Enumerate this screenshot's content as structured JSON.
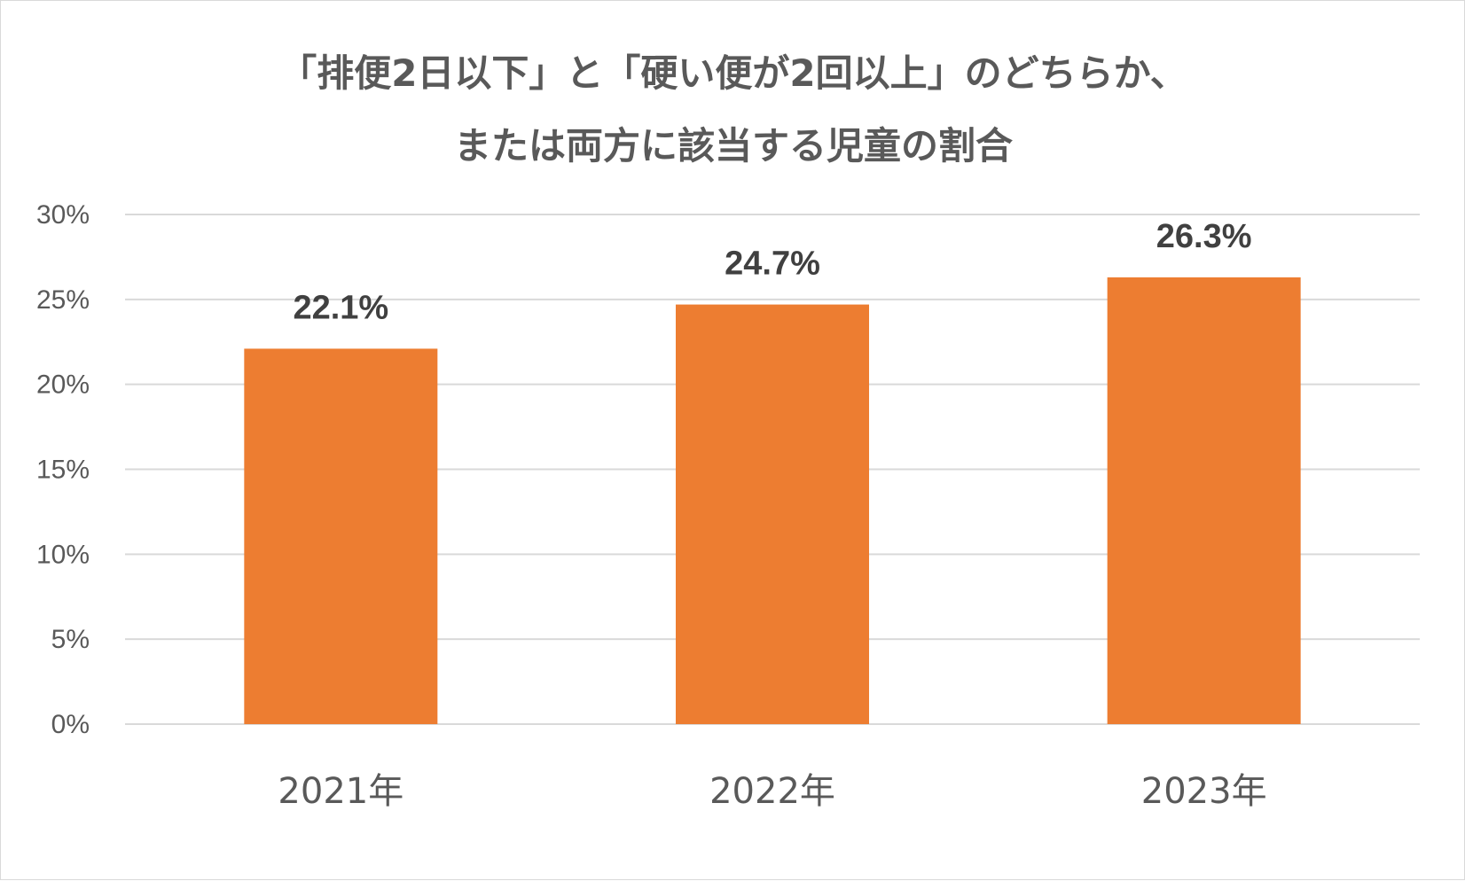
{
  "chart_data": {
    "type": "bar",
    "title_lines": [
      "「排便2日以下」と「硬い便が2回以上」のどちらか、",
      "または両方に該当する児童の割合"
    ],
    "categories": [
      "2021年",
      "2022年",
      "2023年"
    ],
    "values": [
      22.1,
      24.7,
      26.3
    ],
    "data_labels": [
      "22.1%",
      "24.7%",
      "26.3%"
    ],
    "ylim": [
      0,
      30
    ],
    "y_ticks": [
      0,
      5,
      10,
      15,
      20,
      25,
      30
    ],
    "y_tick_labels": [
      "0%",
      "5%",
      "10%",
      "15%",
      "20%",
      "25%",
      "30%"
    ],
    "xlabel": "",
    "ylabel": "",
    "grid": true,
    "bar_color": "#ED7D31",
    "grid_color": "#D9D9D9"
  }
}
